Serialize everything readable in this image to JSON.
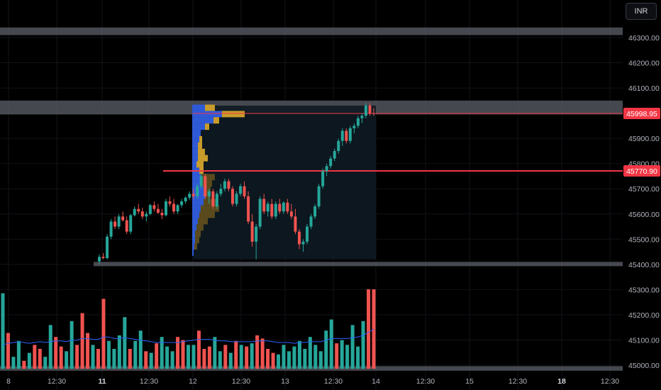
{
  "currency_button": "INR",
  "colors": {
    "background": "#000000",
    "up": "#26a69a",
    "down": "#ef5350",
    "zone": "#5d606b",
    "level_line": "#f23645",
    "volume_ma": "#2962ff",
    "profile_blue": "#2f5ad6",
    "profile_gold": "#c89b2a",
    "profile_gold_dim": "#5a4a1d"
  },
  "chart_data": {
    "type": "candlestick",
    "y_axis": {
      "ticks": [
        45000,
        45100,
        45200,
        45300,
        45400,
        45500,
        45600,
        45700,
        45800,
        45900,
        46000,
        46100,
        46200,
        46300
      ],
      "tick_labels": [
        "45000.00",
        "45100.00",
        "45200.00",
        "45300.00",
        "45400.00",
        "45500.00",
        "45600.00",
        "45700.00",
        "45800.00",
        "45900.00",
        "46000.00",
        "46100.00",
        "46200.00",
        "46300.00"
      ],
      "range": [
        44980,
        46360
      ]
    },
    "x_axis": {
      "tick_labels": [
        {
          "label": "8",
          "bold": false
        },
        {
          "label": "12:30",
          "bold": false
        },
        {
          "label": "11",
          "bold": true
        },
        {
          "label": "12:30",
          "bold": false
        },
        {
          "label": "12",
          "bold": false
        },
        {
          "label": "12:30",
          "bold": false
        },
        {
          "label": "13",
          "bold": false
        },
        {
          "label": "12:30",
          "bold": false
        },
        {
          "label": "14",
          "bold": false
        },
        {
          "label": "12:30",
          "bold": false
        },
        {
          "label": "15",
          "bold": false
        },
        {
          "label": "12:30",
          "bold": false
        },
        {
          "label": "18",
          "bold": true
        },
        {
          "label": "12:30",
          "bold": false
        }
      ]
    },
    "price_labels": [
      {
        "value": 45998.95,
        "text": "45998.95"
      },
      {
        "value": 45770.9,
        "text": "45770.90"
      }
    ],
    "zones": [
      {
        "from": 46310,
        "to": 46340
      },
      {
        "from": 45995,
        "to": 46050
      },
      {
        "from": 45393,
        "to": 45410
      },
      {
        "from": 44978,
        "to": 44996
      }
    ],
    "horizontal_levels": [
      45998.95,
      45770.9
    ],
    "candles": [
      [
        45412,
        45440,
        45400,
        45430
      ],
      [
        45430,
        45445,
        45420,
        45425
      ],
      [
        45425,
        45520,
        45420,
        45510
      ],
      [
        45510,
        45580,
        45500,
        45570
      ],
      [
        45570,
        45590,
        45540,
        45550
      ],
      [
        45550,
        45600,
        45540,
        45590
      ],
      [
        45590,
        45610,
        45570,
        45575
      ],
      [
        45575,
        45590,
        45520,
        45530
      ],
      [
        45530,
        45600,
        45520,
        45595
      ],
      [
        45595,
        45630,
        45590,
        45620
      ],
      [
        45620,
        45640,
        45600,
        45610
      ],
      [
        45610,
        45625,
        45580,
        45590
      ],
      [
        45590,
        45610,
        45570,
        45600
      ],
      [
        45600,
        45640,
        45595,
        45635
      ],
      [
        45635,
        45650,
        45610,
        45620
      ],
      [
        45620,
        45640,
        45600,
        45605
      ],
      [
        45605,
        45620,
        45580,
        45595
      ],
      [
        45595,
        45660,
        45590,
        45650
      ],
      [
        45650,
        45670,
        45630,
        45640
      ],
      [
        45640,
        45660,
        45600,
        45610
      ],
      [
        45610,
        45640,
        45600,
        45635
      ],
      [
        45635,
        45660,
        45625,
        45650
      ],
      [
        45650,
        45670,
        45640,
        45665
      ],
      [
        45665,
        45690,
        45655,
        45680
      ],
      [
        45680,
        45700,
        45660,
        45670
      ],
      [
        45670,
        45720,
        45660,
        45710
      ],
      [
        45710,
        45760,
        45700,
        45750
      ],
      [
        45750,
        45760,
        45660,
        45670
      ],
      [
        45670,
        45700,
        45640,
        45690
      ],
      [
        45690,
        45700,
        45620,
        45630
      ],
      [
        45630,
        45690,
        45620,
        45680
      ],
      [
        45680,
        45720,
        45670,
        45700
      ],
      [
        45700,
        45740,
        45690,
        45730
      ],
      [
        45730,
        45740,
        45690,
        45700
      ],
      [
        45700,
        45710,
        45630,
        45640
      ],
      [
        45640,
        45690,
        45630,
        45680
      ],
      [
        45680,
        45720,
        45670,
        45710
      ],
      [
        45710,
        45730,
        45660,
        45670
      ],
      [
        45670,
        45690,
        45560,
        45570
      ],
      [
        45570,
        45600,
        45470,
        45490
      ],
      [
        45490,
        45560,
        45420,
        45550
      ],
      [
        45550,
        45670,
        45540,
        45660
      ],
      [
        45660,
        45680,
        45600,
        45610
      ],
      [
        45610,
        45650,
        45590,
        45640
      ],
      [
        45640,
        45660,
        45580,
        45590
      ],
      [
        45590,
        45650,
        45580,
        45640
      ],
      [
        45640,
        45660,
        45600,
        45610
      ],
      [
        45610,
        45650,
        45600,
        45645
      ],
      [
        45645,
        45660,
        45600,
        45610
      ],
      [
        45610,
        45640,
        45580,
        45590
      ],
      [
        45590,
        45620,
        45520,
        45530
      ],
      [
        45530,
        45540,
        45460,
        45480
      ],
      [
        45480,
        45500,
        45450,
        45490
      ],
      [
        45490,
        45560,
        45480,
        45550
      ],
      [
        45550,
        45600,
        45540,
        45590
      ],
      [
        45590,
        45640,
        45580,
        45630
      ],
      [
        45630,
        45720,
        45620,
        45710
      ],
      [
        45710,
        45780,
        45700,
        45770
      ],
      [
        45770,
        45800,
        45750,
        45790
      ],
      [
        45790,
        45830,
        45780,
        45820
      ],
      [
        45820,
        45860,
        45810,
        45850
      ],
      [
        45850,
        45900,
        45840,
        45890
      ],
      [
        45890,
        45940,
        45870,
        45930
      ],
      [
        45930,
        45940,
        45880,
        45890
      ],
      [
        45890,
        45950,
        45880,
        45940
      ],
      [
        45940,
        45960,
        45920,
        45950
      ],
      [
        45950,
        45990,
        45940,
        45980
      ],
      [
        45980,
        46000,
        45960,
        45990
      ],
      [
        45990,
        46040,
        45980,
        46030
      ],
      [
        46030,
        46040,
        45990,
        46000
      ],
      [
        46000,
        46020,
        45990,
        45999
      ]
    ],
    "volume": {
      "scale_max": 100,
      "values": [
        95,
        45,
        15,
        35,
        10,
        20,
        30,
        25,
        15,
        55,
        40,
        28,
        22,
        60,
        30,
        70,
        45,
        30,
        25,
        88,
        35,
        25,
        42,
        65,
        25,
        35,
        48,
        22,
        20,
        32,
        40,
        28,
        22,
        40,
        36,
        30,
        30,
        48,
        25,
        28,
        40,
        22,
        30,
        20,
        35,
        30,
        28,
        32,
        42,
        38,
        25,
        20,
        18,
        30,
        22,
        28,
        35,
        25,
        40,
        30,
        22,
        48,
        62,
        32,
        36,
        30,
        55,
        28,
        60,
        100,
        100
      ],
      "ma_note": "",
      "ma": [
        30,
        32,
        33,
        34,
        33,
        32,
        33,
        34,
        33,
        34,
        35,
        35,
        34,
        36,
        36,
        38,
        38,
        37,
        37,
        40,
        40,
        38,
        38,
        39,
        38,
        37,
        36,
        35,
        34,
        33,
        33,
        33,
        33,
        33,
        34,
        35,
        36,
        37,
        37,
        37,
        36,
        35,
        35,
        34,
        34,
        34,
        34,
        34,
        35,
        35,
        35,
        34,
        33,
        33,
        33,
        32,
        33,
        33,
        34,
        34,
        34,
        36,
        38,
        38,
        38,
        38,
        39,
        40,
        42,
        46,
        50
      ]
    },
    "volume_profile": {
      "note": "",
      "rows": [
        {
          "price": 46020,
          "blue": 18,
          "gold": 14
        },
        {
          "price": 45995,
          "blue": 42,
          "gold": 32
        },
        {
          "price": 45970,
          "blue": 30,
          "gold": 8
        },
        {
          "price": 45945,
          "blue": 18,
          "gold": 6
        },
        {
          "price": 45920,
          "blue": 12,
          "gold": 0
        },
        {
          "price": 45895,
          "blue": 10,
          "gold": 4
        },
        {
          "price": 45870,
          "blue": 8,
          "gold": 6
        },
        {
          "price": 45845,
          "blue": 8,
          "gold": 10
        },
        {
          "price": 45820,
          "blue": 8,
          "gold": 14
        },
        {
          "price": 45795,
          "blue": 6,
          "gold": 10
        },
        {
          "price": 45770,
          "blue": 10,
          "gold": 6
        },
        {
          "price": 45745,
          "blue": 12,
          "gold": 20
        },
        {
          "price": 45720,
          "blue": 14,
          "gold": 14
        },
        {
          "price": 45695,
          "blue": 16,
          "gold": 10
        },
        {
          "price": 45670,
          "blue": 18,
          "gold": 8
        },
        {
          "price": 45645,
          "blue": 16,
          "gold": 20
        },
        {
          "price": 45620,
          "blue": 12,
          "gold": 26
        },
        {
          "price": 45595,
          "blue": 10,
          "gold": 22
        },
        {
          "price": 45570,
          "blue": 8,
          "gold": 14
        },
        {
          "price": 45545,
          "blue": 6,
          "gold": 10
        },
        {
          "price": 45520,
          "blue": 4,
          "gold": 8
        },
        {
          "price": 45495,
          "blue": 4,
          "gold": 6
        },
        {
          "price": 45470,
          "blue": 3,
          "gold": 4
        },
        {
          "price": 45445,
          "blue": 2,
          "gold": 0
        }
      ]
    }
  }
}
